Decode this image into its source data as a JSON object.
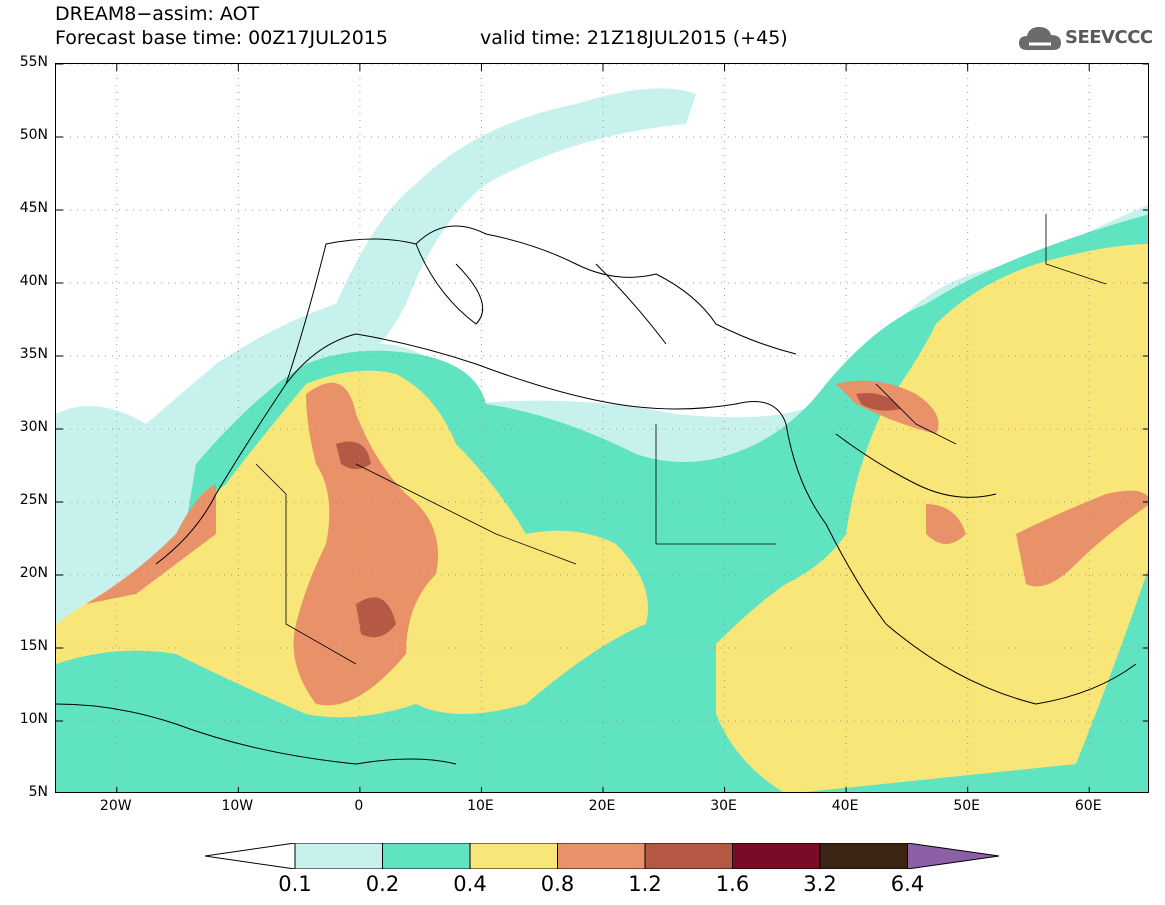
{
  "title": {
    "line1": "DREAM8−assim: AOT",
    "base_time": "Forecast base time: 00Z17JUL2015",
    "valid_time": "valid time: 21Z18JUL2015 (+45)"
  },
  "logo": {
    "text": "SEEVCCC"
  },
  "map": {
    "extent": {
      "lon_min": -25,
      "lon_max": 65,
      "lat_min": 5,
      "lat_max": 55
    },
    "lat_ticks": [
      "55N",
      "50N",
      "45N",
      "40N",
      "35N",
      "30N",
      "25N",
      "20N",
      "15N",
      "10N",
      "5N"
    ],
    "lat_values": [
      55,
      50,
      45,
      40,
      35,
      30,
      25,
      20,
      15,
      10,
      5
    ],
    "lon_ticks": [
      "20W",
      "10W",
      "0",
      "10E",
      "20E",
      "30E",
      "40E",
      "50E",
      "60E"
    ],
    "lon_values": [
      -20,
      -10,
      0,
      10,
      20,
      30,
      40,
      50,
      60
    ]
  },
  "colorbar": {
    "labels": [
      "0.1",
      "0.2",
      "0.4",
      "0.8",
      "1.2",
      "1.6",
      "3.2",
      "6.4"
    ],
    "colors": [
      "#ffffff",
      "#c6f1ec",
      "#5fe3c0",
      "#f8e679",
      "#e9926a",
      "#b55844",
      "#7a0a26",
      "#3b2514",
      "#8c5fa6"
    ]
  }
}
